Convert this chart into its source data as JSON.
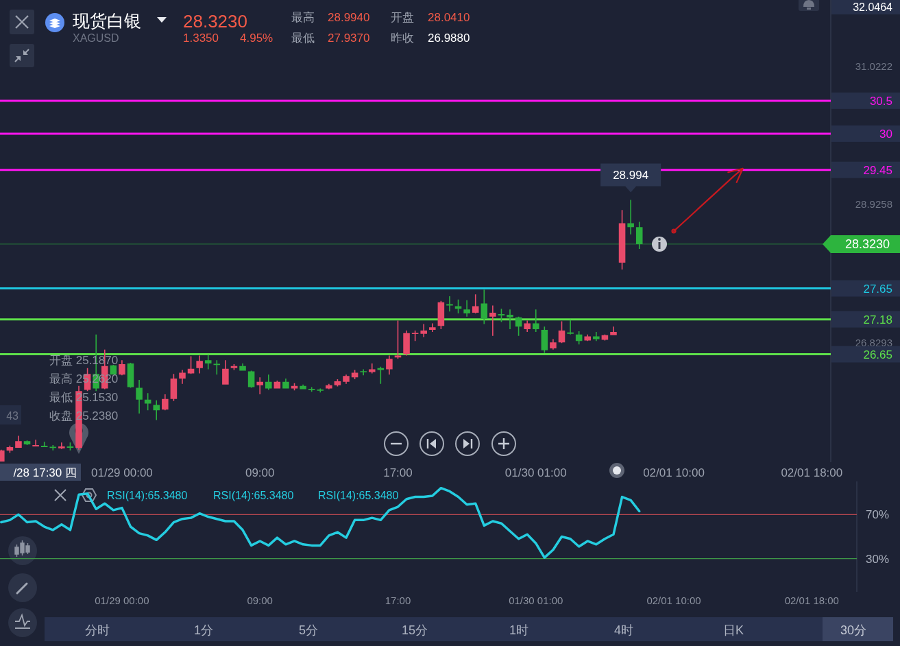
{
  "chart_data": [
    {
      "type": "candlestick",
      "title": "现货白银",
      "subtitle": "XAGUSD",
      "categories": [
        null,
        null,
        null,
        null,
        null,
        null,
        null,
        null,
        null,
        null,
        null,
        null,
        null,
        null,
        "01/29 00:00",
        null,
        null,
        null,
        null,
        null,
        null,
        null,
        null,
        null,
        null,
        null,
        null,
        null,
        null,
        null,
        "09:00",
        null,
        null,
        null,
        null,
        null,
        null,
        null,
        null,
        null,
        null,
        null,
        null,
        null,
        null,
        null,
        "17:00",
        null,
        null,
        null,
        null,
        null,
        null,
        null,
        null,
        null,
        null,
        null,
        null,
        null,
        null,
        null,
        "01/30 01:00",
        null,
        null,
        null,
        null,
        null,
        null,
        null,
        null,
        null,
        null,
        null,
        null,
        null,
        null,
        null,
        "02/01 10:00",
        null,
        null,
        null,
        null,
        null,
        null,
        null,
        null,
        null,
        null,
        null,
        null,
        null,
        null,
        null,
        "02/01 18:00",
        null,
        null
      ],
      "ohlc": [
        [
          25.02,
          25.2,
          25.02,
          25.19
        ],
        [
          25.187,
          25.262,
          25.153,
          25.238
        ],
        [
          25.23,
          25.41,
          25.23,
          25.33
        ],
        [
          25.33,
          25.34,
          25.27,
          25.28
        ],
        [
          25.25,
          25.35,
          25.25,
          25.27
        ],
        [
          25.26,
          25.32,
          25.24,
          25.24
        ],
        [
          25.24,
          25.27,
          25.19,
          25.23
        ],
        [
          25.22,
          25.31,
          25.21,
          25.25
        ],
        [
          25.25,
          25.31,
          25.19,
          25.23
        ],
        [
          25.23,
          26.17,
          25.2,
          26.09
        ],
        [
          26.11,
          26.44,
          26.09,
          26.35
        ],
        [
          26.35,
          26.95,
          26.09,
          26.13
        ],
        [
          26.13,
          26.72,
          26.12,
          26.47
        ],
        [
          26.48,
          26.49,
          26.34,
          26.34
        ],
        [
          26.34,
          26.56,
          26.33,
          26.5
        ],
        [
          26.51,
          26.52,
          26.14,
          26.15
        ],
        [
          26.14,
          26.26,
          25.75,
          25.96
        ],
        [
          25.96,
          26.06,
          25.8,
          25.9
        ],
        [
          25.88,
          25.95,
          25.65,
          25.8
        ],
        [
          25.81,
          26.04,
          25.8,
          25.97
        ],
        [
          25.97,
          26.35,
          25.94,
          26.28
        ],
        [
          26.28,
          26.41,
          26.2,
          26.37
        ],
        [
          26.36,
          26.62,
          26.35,
          26.43
        ],
        [
          26.44,
          26.63,
          26.36,
          26.55
        ],
        [
          26.56,
          26.64,
          26.42,
          26.51
        ],
        [
          26.5,
          26.56,
          26.34,
          26.49
        ],
        [
          26.19,
          26.56,
          26.19,
          26.43
        ],
        [
          26.44,
          26.5,
          26.41,
          26.47
        ],
        [
          26.47,
          26.51,
          26.4,
          26.4
        ],
        [
          26.39,
          26.4,
          26.14,
          26.15
        ],
        [
          26.18,
          26.3,
          26.04,
          26.23
        ],
        [
          26.23,
          26.34,
          26.11,
          26.13
        ],
        [
          26.13,
          26.25,
          26.13,
          26.23
        ],
        [
          26.23,
          26.28,
          26.13,
          26.13
        ],
        [
          26.13,
          26.21,
          26.1,
          26.17
        ],
        [
          26.17,
          26.19,
          26.12,
          26.12
        ],
        [
          26.12,
          26.15,
          26.08,
          26.11
        ],
        [
          26.11,
          26.13,
          26.07,
          26.1
        ],
        [
          26.13,
          26.2,
          26.12,
          26.18
        ],
        [
          26.18,
          26.27,
          26.16,
          26.24
        ],
        [
          26.23,
          26.34,
          26.2,
          26.32
        ],
        [
          26.3,
          26.41,
          26.27,
          26.37
        ],
        [
          26.39,
          26.42,
          26.33,
          26.38
        ],
        [
          26.38,
          26.51,
          26.36,
          26.42
        ],
        [
          26.44,
          26.46,
          26.2,
          26.41
        ],
        [
          26.42,
          26.63,
          26.34,
          26.58
        ],
        [
          26.6,
          27.16,
          26.58,
          26.63
        ],
        [
          26.65,
          27.01,
          26.63,
          26.97
        ],
        [
          26.96,
          27.01,
          26.85,
          26.97
        ],
        [
          26.96,
          27.11,
          26.91,
          27.01
        ],
        [
          27.02,
          27.12,
          26.99,
          27.06
        ],
        [
          27.08,
          27.46,
          27.03,
          27.44
        ],
        [
          27.41,
          27.53,
          27.3,
          27.39
        ],
        [
          27.38,
          27.48,
          27.27,
          27.34
        ],
        [
          27.33,
          27.47,
          27.22,
          27.27
        ],
        [
          27.28,
          27.56,
          27.27,
          27.38
        ],
        [
          27.42,
          27.63,
          27.11,
          27.19
        ],
        [
          27.22,
          27.39,
          26.93,
          27.28
        ],
        [
          27.26,
          27.34,
          27.14,
          27.24
        ],
        [
          27.25,
          27.33,
          27.03,
          27.21
        ],
        [
          27.21,
          27.22,
          26.93,
          27.07
        ],
        [
          27.03,
          27.16,
          26.99,
          27.12
        ],
        [
          27.12,
          27.33,
          26.99,
          27.03
        ],
        [
          27.02,
          27.07,
          26.67,
          26.71
        ],
        [
          26.74,
          26.88,
          26.72,
          26.83
        ],
        [
          26.83,
          27.15,
          26.82,
          27.01
        ],
        [
          26.98,
          27.17,
          26.95,
          26.96
        ],
        [
          26.95,
          27.0,
          26.8,
          26.85
        ],
        [
          26.86,
          26.95,
          26.85,
          26.92
        ],
        [
          26.92,
          26.99,
          26.85,
          26.88
        ],
        [
          26.87,
          26.95,
          26.86,
          26.94
        ],
        [
          26.94,
          27.07,
          26.94,
          26.99
        ],
        [
          28.041,
          28.84,
          27.937,
          28.64
        ],
        [
          28.64,
          28.994,
          28.47,
          28.58
        ],
        [
          28.58,
          28.66,
          28.25,
          28.323
        ],
        null,
        null,
        null,
        null,
        null,
        null,
        null,
        null,
        null,
        null,
        null,
        null,
        null,
        null,
        null,
        null,
        null,
        null,
        null,
        null,
        null,
        null
      ],
      "colors": [
        "#e84a6a",
        "#e84a6a",
        "#e84a6a",
        "#2aae3e",
        "#e84a6a",
        "#2aae3e",
        "#2aae3e",
        "#e84a6a",
        "#2aae3e",
        "#e84a6a",
        "#e84a6a",
        "#2aae3e",
        "#e84a6a",
        "#2aae3e",
        "#e84a6a",
        "#2aae3e",
        "#2aae3e",
        "#2aae3e",
        "#2aae3e",
        "#e84a6a",
        "#e84a6a",
        "#e84a6a",
        "#e84a6a",
        "#e84a6a",
        "#2aae3e",
        "#2aae3e",
        "#e84a6a",
        "#e84a6a",
        "#2aae3e",
        "#2aae3e",
        "#e84a6a",
        "#2aae3e",
        "#e84a6a",
        "#2aae3e",
        "#e84a6a",
        "#2aae3e",
        "#2aae3e",
        "#2aae3e",
        "#e84a6a",
        "#e84a6a",
        "#e84a6a",
        "#e84a6a",
        "#2aae3e",
        "#e84a6a",
        "#2aae3e",
        "#e84a6a",
        "#e84a6a",
        "#e84a6a",
        "#e84a6a",
        "#e84a6a",
        "#e84a6a",
        "#e84a6a",
        "#2aae3e",
        "#2aae3e",
        "#2aae3e",
        "#e84a6a",
        "#2aae3e",
        "#e84a6a",
        "#2aae3e",
        "#2aae3e",
        "#2aae3e",
        "#e84a6a",
        "#2aae3e",
        "#2aae3e",
        "#e84a6a",
        "#e84a6a",
        "#2aae3e",
        "#2aae3e",
        "#e84a6a",
        "#2aae3e",
        "#e84a6a",
        "#e84a6a",
        "#e84a6a",
        "#2aae3e",
        "#2aae3e",
        null,
        null,
        null,
        null,
        null,
        null,
        null,
        null,
        null,
        null,
        null,
        null,
        null,
        null,
        null,
        null,
        null,
        null,
        null,
        null,
        null,
        null
      ],
      "series": [
        {
          "type": "line",
          "color": "#c8191f",
          "values": [
            null,
            null,
            null,
            null,
            null,
            null,
            null,
            null,
            null,
            null,
            null,
            null,
            null,
            null,
            null,
            null,
            null,
            null,
            null,
            null,
            null,
            null,
            null,
            null,
            null,
            null,
            null,
            null,
            null,
            null,
            null,
            null,
            null,
            null,
            null,
            null,
            null,
            null,
            null,
            null,
            null,
            null,
            null,
            null,
            null,
            null,
            null,
            null,
            null,
            null,
            null,
            null,
            null,
            null,
            null,
            null,
            null,
            null,
            null,
            null,
            null,
            null,
            null,
            null,
            null,
            null,
            null,
            null,
            null,
            null,
            null,
            null,
            null,
            null,
            null,
            null,
            null,
            null,
            28.52,
            28.64,
            28.76,
            28.88,
            29.0,
            29.12,
            29.24,
            29.36,
            29.47,
            null,
            null,
            null,
            null,
            null,
            null,
            null,
            null,
            null,
            null
          ]
        }
      ],
      "ylim": [
        25.01,
        32.03
      ],
      "yticks": [
        26.8293,
        28.9258,
        31.0222
      ],
      "ref_lines": [
        {
          "axis": "y",
          "value": 30.5,
          "label": "30.5",
          "color": "#ff14f0"
        },
        {
          "axis": "y",
          "value": 30,
          "label": "30",
          "color": "#ff14f0"
        },
        {
          "axis": "y",
          "value": 29.45,
          "label": "29.45",
          "color": "#ff14f0"
        },
        {
          "axis": "y",
          "value": 28.323,
          "label": "28.3230",
          "color": "#2db43e"
        },
        {
          "axis": "y",
          "value": 27.65,
          "label": "27.65",
          "color": "#1ec8e0"
        },
        {
          "axis": "y",
          "value": 27.18,
          "label": "27.18",
          "color": "#5ee04a"
        },
        {
          "axis": "y",
          "value": 26.65,
          "label": "26.65",
          "color": "#5ee04a"
        }
      ],
      "annotations": [
        "28.3230",
        "1.3350",
        "4.95%",
        "最高",
        "28.9940",
        "开盘",
        "28.0410",
        "最低",
        "27.9370",
        "昨收",
        "26.9880",
        "32.0464",
        "开盘 25.1870",
        "最高 25.2620",
        "最低 25.1530",
        "收盘 25.2380",
        "/28 17:30 四",
        "43",
        {
          "text": "28.994",
          "y": 28.994
        }
      ]
    },
    {
      "type": "line",
      "categories": [
        null,
        null,
        null,
        null,
        null,
        null,
        null,
        null,
        null,
        null,
        null,
        null,
        null,
        null,
        "01/29 00:00",
        null,
        null,
        null,
        null,
        null,
        null,
        null,
        null,
        null,
        null,
        null,
        null,
        null,
        null,
        null,
        "09:00",
        null,
        null,
        null,
        null,
        null,
        null,
        null,
        null,
        null,
        null,
        null,
        null,
        null,
        null,
        null,
        "17:00",
        null,
        null,
        null,
        null,
        null,
        null,
        null,
        null,
        null,
        null,
        null,
        null,
        null,
        null,
        null,
        "01/30 01:00",
        null,
        null,
        null,
        null,
        null,
        null,
        null,
        null,
        null,
        null,
        null,
        null,
        null,
        null,
        null,
        "02/01 10:00",
        null,
        null,
        null,
        null,
        null,
        null,
        null,
        null,
        null,
        null,
        null,
        null,
        null,
        null,
        null,
        "02/01 18:00",
        null,
        null
      ],
      "series": [
        {
          "color": "#25cde0",
          "values": [
            63,
            65,
            70,
            63,
            64,
            59,
            56,
            61,
            56,
            88,
            89,
            75,
            80,
            74,
            76,
            59,
            53,
            51,
            47,
            54,
            63,
            66,
            67,
            71,
            68,
            66,
            64,
            64,
            56,
            42,
            46,
            42,
            49,
            43,
            46,
            43,
            42,
            42,
            51,
            54,
            49,
            65,
            65,
            67,
            65,
            74,
            77,
            84,
            86,
            86,
            87,
            94,
            91,
            86,
            79,
            80,
            60,
            64,
            62,
            55,
            48,
            52,
            44,
            31,
            38,
            50,
            48,
            41,
            46,
            43,
            48,
            52,
            86,
            83,
            73,
            null,
            null,
            null,
            null,
            null,
            null,
            null,
            null,
            null,
            null,
            null,
            null,
            null,
            null,
            null,
            null,
            null,
            null,
            null,
            null,
            null,
            null
          ]
        }
      ],
      "ylim": [
        0,
        100
      ],
      "yticks": [
        {
          "value": 70,
          "label": "70%"
        },
        {
          "value": 30,
          "label": "30%"
        }
      ],
      "ref_lines": [
        {
          "axis": "y",
          "value": 70,
          "color": "#b9474f"
        },
        {
          "axis": "y",
          "value": 30,
          "color": "#3f9a48"
        }
      ],
      "annotations": [
        "RSI(14):65.3480",
        "RSI(14):65.3480",
        "RSI(14):65.3480",
        "分时",
        "1分",
        "5分",
        "15分",
        "1时",
        "4时",
        "日K",
        "30分"
      ]
    }
  ]
}
